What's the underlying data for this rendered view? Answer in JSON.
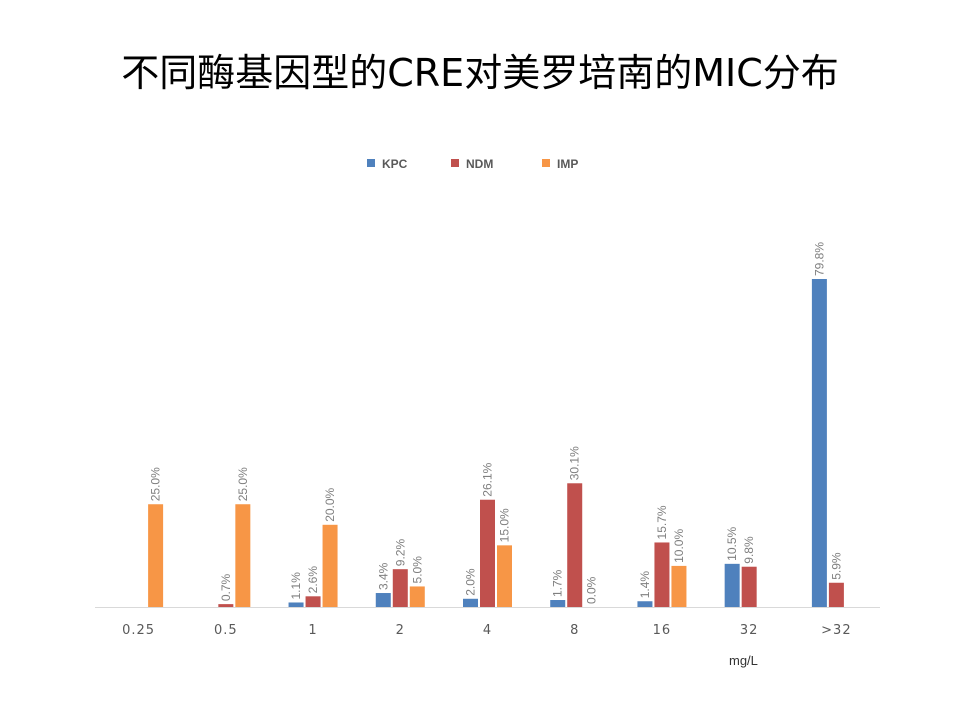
{
  "title": "不同酶基因型的CRE对美罗培南的MIC分布",
  "unit_label": "mg/L",
  "colors": {
    "KPC": "#4f81bd",
    "NDM": "#c0504d",
    "IMP": "#f79646",
    "axis": "#d9d9d9"
  },
  "chart_data": {
    "type": "bar",
    "title": "不同酶基因型的CRE对美罗培南的MIC分布",
    "xlabel": "mg/L",
    "ylabel": "",
    "ylim": [
      0,
      85
    ],
    "grid": false,
    "legend_position": "top",
    "categories": [
      "0.25",
      "0.5",
      "1",
      "2",
      "4",
      "8",
      "16",
      "32",
      ">32"
    ],
    "series": [
      {
        "name": "KPC",
        "values": [
          null,
          null,
          1.1,
          3.4,
          2.0,
          1.7,
          1.4,
          10.5,
          79.8
        ],
        "labels": [
          null,
          null,
          "1.1%",
          "3.4%",
          "2.0%",
          "1.7%",
          "1.4%",
          "10.5%",
          "79.8%"
        ]
      },
      {
        "name": "NDM",
        "values": [
          null,
          0.7,
          2.6,
          9.2,
          26.1,
          30.1,
          15.7,
          9.8,
          5.9
        ],
        "labels": [
          null,
          "0.7%",
          "2.6%",
          "9.2%",
          "26.1%",
          "30.1%",
          "15.7%",
          "9.8%",
          "5.9%"
        ]
      },
      {
        "name": "IMP",
        "values": [
          25.0,
          25.0,
          20.0,
          5.0,
          15.0,
          0.0,
          10.0,
          null,
          null
        ],
        "labels": [
          "25.0%",
          "25.0%",
          "20.0%",
          "5.0%",
          "15.0%",
          "0.0%",
          "10.0%",
          null,
          null
        ]
      }
    ]
  }
}
